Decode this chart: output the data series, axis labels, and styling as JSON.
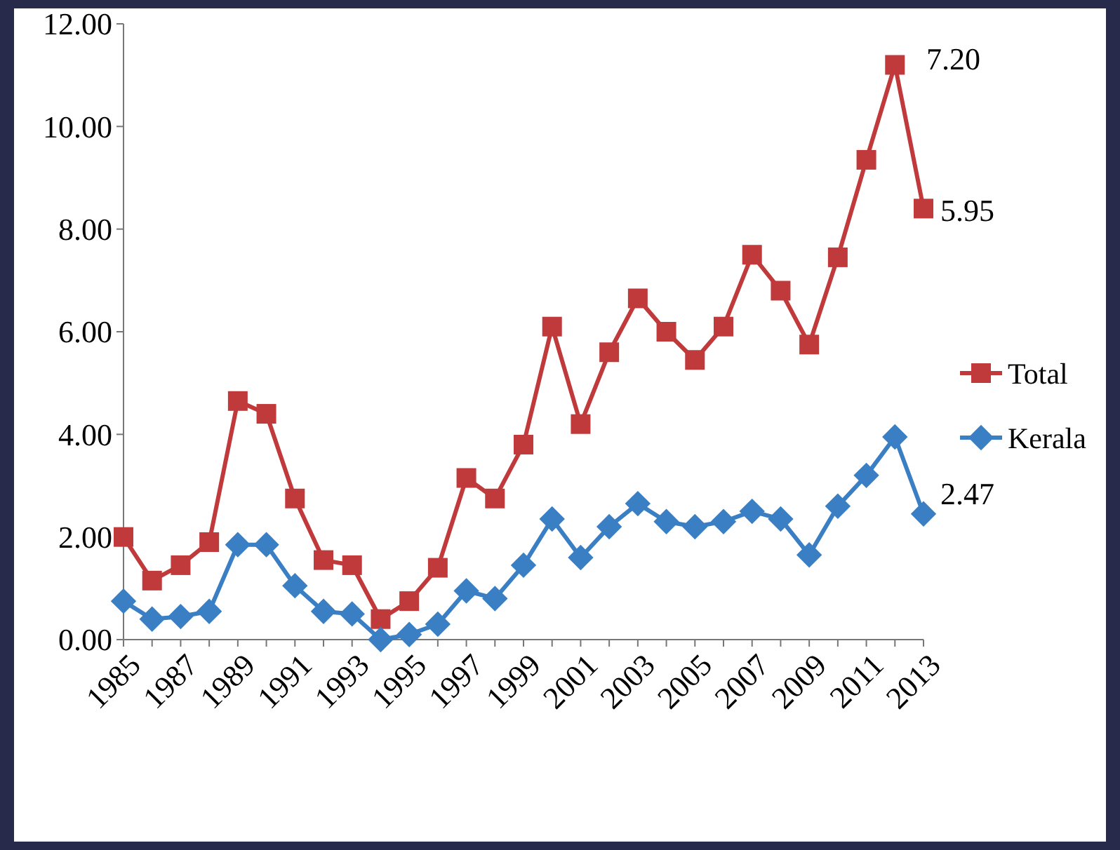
{
  "chart_data": {
    "type": "line",
    "x": [
      1985,
      1986,
      1987,
      1988,
      1989,
      1990,
      1991,
      1992,
      1993,
      1994,
      1995,
      1996,
      1997,
      1998,
      1999,
      2000,
      2001,
      2002,
      2003,
      2004,
      2005,
      2006,
      2007,
      2008,
      2009,
      2010,
      2011,
      2012,
      2013
    ],
    "series": [
      {
        "name": "Total",
        "color": "#c0393b",
        "marker": "square",
        "values": [
          2.0,
          1.15,
          1.45,
          1.9,
          4.65,
          4.4,
          2.75,
          1.55,
          1.45,
          0.4,
          0.75,
          1.4,
          3.15,
          2.75,
          3.8,
          6.1,
          4.2,
          5.6,
          6.65,
          6.0,
          5.45,
          6.1,
          7.5,
          6.8,
          5.75,
          7.45,
          9.35,
          11.2,
          8.4
        ]
      },
      {
        "name": "Kerala",
        "color": "#3a7fc4",
        "marker": "diamond",
        "values": [
          0.75,
          0.4,
          0.45,
          0.55,
          1.85,
          1.85,
          1.05,
          0.55,
          0.5,
          0.0,
          0.1,
          0.3,
          0.95,
          0.8,
          1.45,
          2.35,
          1.6,
          2.2,
          2.65,
          2.3,
          2.2,
          2.3,
          2.5,
          2.35,
          1.65,
          2.6,
          3.2,
          3.95,
          2.45
        ]
      }
    ],
    "xlim": [
      1985,
      2013
    ],
    "xticks": [
      1985,
      {
        "value": 1986,
        "label": null
      },
      1987,
      {
        "value": 1988,
        "label": null
      },
      1989,
      {
        "value": 1990,
        "label": null
      },
      1991,
      {
        "value": 1992,
        "label": null
      },
      1993,
      {
        "value": 1994,
        "label": null
      },
      1995,
      {
        "value": 1996,
        "label": null
      },
      1997,
      {
        "value": 1998,
        "label": null
      },
      1999,
      {
        "value": 2000,
        "label": null
      },
      2001,
      {
        "value": 2002,
        "label": null
      },
      2003,
      {
        "value": 2004,
        "label": null
      },
      2005,
      {
        "value": 2006,
        "label": null
      },
      2007,
      {
        "value": 2008,
        "label": null
      },
      2009,
      {
        "value": 2010,
        "label": null
      },
      2011,
      {
        "value": 2012,
        "label": null
      },
      2013
    ],
    "ylim": [
      0,
      12
    ],
    "yticks": [
      {
        "value": 0,
        "label": "0.00"
      },
      {
        "value": 2,
        "label": "2.00"
      },
      {
        "value": 4,
        "label": "4.00"
      },
      {
        "value": 6,
        "label": "6.00"
      },
      {
        "value": 8,
        "label": "8.00"
      },
      {
        "value": 10,
        "label": "10.00"
      },
      {
        "value": 12,
        "label": "12.00"
      }
    ],
    "annotations": [
      "7.20",
      "5.95",
      "2.47"
    ],
    "legend": "right",
    "grid": false,
    "line_style": "solid"
  }
}
